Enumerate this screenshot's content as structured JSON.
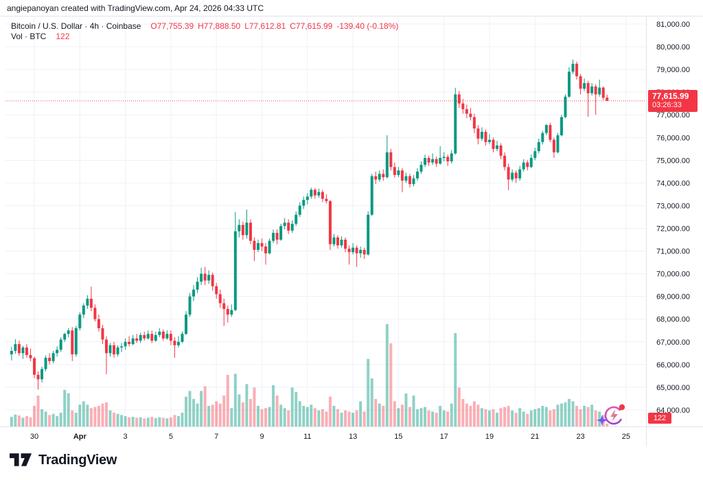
{
  "header": {
    "attribution": "angiepanoyan created with TradingView.com, Apr 24, 2026 04:33 UTC"
  },
  "legend": {
    "symbol": "Bitcoin / U.S. Dollar · 4h · Coinbase",
    "open": "O77,755.39",
    "high": "H77,888.50",
    "low": "L77,612.81",
    "close": "C77,615.99",
    "change": "-139.40 (-0.18%)",
    "volume_label": "Vol · BTC",
    "volume_value": "122"
  },
  "price_badge": {
    "price": "77,615.99",
    "countdown": "03:26:33"
  },
  "volume_badge": {
    "value": "122"
  },
  "footer": {
    "logo_text": "TradingView"
  },
  "colors": {
    "up": "#089981",
    "down": "#f23645",
    "vol_up": "rgba(8,153,129,0.45)",
    "vol_down": "rgba(242,54,69,0.40)",
    "grid": "#eef1f7",
    "axis_border": "#e0e3eb",
    "price_line": "#f23645",
    "badge": "#f23645",
    "text": "#131722"
  },
  "price_axis": {
    "labels": [
      {
        "value": 81000,
        "label": "81,000.00"
      },
      {
        "value": 80000,
        "label": "80,000.00"
      },
      {
        "value": 79000,
        "label": "79,000.00"
      },
      {
        "value": 78000,
        "label": "78,000.00"
      },
      {
        "value": 77000,
        "label": "77,000.00"
      },
      {
        "value": 76000,
        "label": "76,000.00"
      },
      {
        "value": 75000,
        "label": "75,000.00"
      },
      {
        "value": 74000,
        "label": "74,000.00"
      },
      {
        "value": 73000,
        "label": "73,000.00"
      },
      {
        "value": 72000,
        "label": "72,000.00"
      },
      {
        "value": 71000,
        "label": "71,000.00"
      },
      {
        "value": 70000,
        "label": "70,000.00"
      },
      {
        "value": 69000,
        "label": "69,000.00"
      },
      {
        "value": 68000,
        "label": "68,000.00"
      },
      {
        "value": 67000,
        "label": "67,000.00"
      },
      {
        "value": 66000,
        "label": "66,000.00"
      },
      {
        "value": 65000,
        "label": "65,000.00"
      },
      {
        "value": 64000,
        "label": "64,000.00"
      }
    ]
  },
  "time_axis": {
    "ticks": [
      {
        "label": "30",
        "day_offset": 0,
        "bold": false
      },
      {
        "label": "Apr",
        "day_offset": 2,
        "bold": true
      },
      {
        "label": "3",
        "day_offset": 4,
        "bold": false
      },
      {
        "label": "5",
        "day_offset": 6,
        "bold": false
      },
      {
        "label": "7",
        "day_offset": 8,
        "bold": false
      },
      {
        "label": "9",
        "day_offset": 10,
        "bold": false
      },
      {
        "label": "11",
        "day_offset": 12,
        "bold": false
      },
      {
        "label": "13",
        "day_offset": 14,
        "bold": false
      },
      {
        "label": "15",
        "day_offset": 16,
        "bold": false
      },
      {
        "label": "17",
        "day_offset": 18,
        "bold": false
      },
      {
        "label": "19",
        "day_offset": 20,
        "bold": false
      },
      {
        "label": "21",
        "day_offset": 22,
        "bold": false
      },
      {
        "label": "23",
        "day_offset": 24,
        "bold": false
      },
      {
        "label": "25",
        "day_offset": 26,
        "bold": false
      }
    ]
  },
  "chart_data": {
    "type": "candlestick",
    "title": "Bitcoin / U.S. Dollar",
    "exchange": "Coinbase",
    "interval": "4h",
    "bar_interval_hours": 4,
    "first_bar": "Mar 29 00:00 UTC",
    "last_bar": "Apr 24 04:00 UTC (in progress, 03:26:33 remaining)",
    "last_price": 77615.99,
    "change": -139.4,
    "change_pct": -0.18,
    "last_volume_btc": 122,
    "ylim": [
      63300,
      81400
    ],
    "grid": true,
    "legend_position": "top-left",
    "columns": [
      "open",
      "high",
      "low",
      "close",
      "volume_btc_est"
    ],
    "candles": [
      [
        66450,
        66780,
        66180,
        66600,
        420
      ],
      [
        66600,
        67120,
        66480,
        66900,
        520
      ],
      [
        66900,
        67050,
        66380,
        66500,
        480
      ],
      [
        66500,
        66820,
        66250,
        66750,
        380
      ],
      [
        66750,
        66900,
        66300,
        66420,
        450
      ],
      [
        66420,
        66700,
        66150,
        66280,
        400
      ],
      [
        66280,
        66350,
        65400,
        65550,
        900
      ],
      [
        65550,
        65700,
        64900,
        65350,
        1350
      ],
      [
        65350,
        65900,
        65200,
        65800,
        750
      ],
      [
        65800,
        66400,
        65700,
        66300,
        650
      ],
      [
        66300,
        66500,
        66000,
        66150,
        500
      ],
      [
        66150,
        66600,
        66050,
        66500,
        550
      ],
      [
        66500,
        66800,
        66350,
        66650,
        450
      ],
      [
        66650,
        67200,
        66550,
        67100,
        600
      ],
      [
        67100,
        67400,
        67000,
        67350,
        1600
      ],
      [
        67350,
        67600,
        67200,
        67500,
        1450
      ],
      [
        67500,
        67650,
        66150,
        66450,
        700
      ],
      [
        66450,
        67700,
        66350,
        67600,
        600
      ],
      [
        67600,
        68300,
        67500,
        68200,
        950
      ],
      [
        68200,
        68700,
        68050,
        68600,
        1100
      ],
      [
        68600,
        69050,
        68450,
        68900,
        950
      ],
      [
        68900,
        69430,
        68350,
        68500,
        800
      ],
      [
        68500,
        68650,
        67900,
        68000,
        850
      ],
      [
        68000,
        68200,
        67450,
        67600,
        900
      ],
      [
        67600,
        67750,
        66900,
        67100,
        1000
      ],
      [
        67100,
        67250,
        65570,
        66500,
        1050
      ],
      [
        66500,
        66950,
        66350,
        66850,
        700
      ],
      [
        66850,
        67000,
        66300,
        66450,
        600
      ],
      [
        66450,
        66850,
        66350,
        66750,
        550
      ],
      [
        66750,
        66950,
        66550,
        66800,
        500
      ],
      [
        66800,
        67150,
        66650,
        67000,
        450
      ],
      [
        67000,
        67250,
        66800,
        66900,
        400
      ],
      [
        66900,
        67300,
        66850,
        67150,
        420
      ],
      [
        67150,
        67350,
        66950,
        67050,
        380
      ],
      [
        67050,
        67400,
        66950,
        67300,
        400
      ],
      [
        67300,
        67450,
        67050,
        67150,
        350
      ],
      [
        67150,
        67500,
        67100,
        67350,
        380
      ],
      [
        67350,
        67500,
        66950,
        67050,
        420
      ],
      [
        67050,
        67450,
        67000,
        67300,
        360
      ],
      [
        67300,
        67600,
        67200,
        67450,
        400
      ],
      [
        67450,
        67550,
        67050,
        67150,
        380
      ],
      [
        67150,
        67500,
        67100,
        67350,
        350
      ],
      [
        67350,
        67500,
        66850,
        67050,
        400
      ],
      [
        67050,
        67200,
        66300,
        66850,
        500
      ],
      [
        66850,
        67250,
        66750,
        67000,
        450
      ],
      [
        67000,
        67450,
        66950,
        67350,
        600
      ],
      [
        67350,
        68350,
        67300,
        68200,
        1300
      ],
      [
        68200,
        69150,
        68100,
        69000,
        1550
      ],
      [
        69000,
        69500,
        68800,
        69300,
        1200
      ],
      [
        69300,
        69850,
        69150,
        69650,
        1000
      ],
      [
        69650,
        70260,
        69500,
        70000,
        1550
      ],
      [
        70000,
        70300,
        69500,
        69700,
        1750
      ],
      [
        69700,
        70150,
        69550,
        69950,
        900
      ],
      [
        69950,
        70050,
        69250,
        69450,
        950
      ],
      [
        69450,
        69600,
        68900,
        69100,
        1100
      ],
      [
        69100,
        69300,
        68500,
        68700,
        1000
      ],
      [
        68700,
        68900,
        67700,
        68450,
        1350
      ],
      [
        68450,
        68600,
        67850,
        68200,
        2250
      ],
      [
        68200,
        68650,
        68100,
        68400,
        800
      ],
      [
        68400,
        72710,
        68350,
        71870,
        2300
      ],
      [
        71870,
        72400,
        71600,
        72150,
        1400
      ],
      [
        72150,
        72300,
        71500,
        71700,
        1050
      ],
      [
        71700,
        72830,
        71550,
        72250,
        1850
      ],
      [
        72250,
        72400,
        71300,
        71450,
        1200
      ],
      [
        71450,
        71600,
        70560,
        71050,
        1700
      ],
      [
        71050,
        71500,
        70950,
        71350,
        900
      ],
      [
        71350,
        71550,
        71000,
        71200,
        750
      ],
      [
        71200,
        71350,
        70400,
        70900,
        800
      ],
      [
        70900,
        71550,
        70850,
        71450,
        850
      ],
      [
        71450,
        71950,
        71350,
        71800,
        1800
      ],
      [
        71800,
        71950,
        71300,
        71500,
        1350
      ],
      [
        71500,
        72200,
        71450,
        72100,
        950
      ],
      [
        72100,
        72450,
        71950,
        72250,
        800
      ],
      [
        72250,
        72400,
        71750,
        71900,
        700
      ],
      [
        71900,
        72350,
        71800,
        72200,
        1700
      ],
      [
        72200,
        72750,
        72100,
        72600,
        1500
      ],
      [
        72600,
        73150,
        72500,
        73000,
        1100
      ],
      [
        73000,
        73400,
        72850,
        73250,
        900
      ],
      [
        73250,
        73550,
        73050,
        73400,
        850
      ],
      [
        73400,
        73790,
        73300,
        73700,
        950
      ],
      [
        73700,
        73780,
        73300,
        73450,
        800
      ],
      [
        73450,
        73750,
        73350,
        73600,
        700
      ],
      [
        73600,
        73700,
        73150,
        73300,
        750
      ],
      [
        73300,
        73500,
        73100,
        73200,
        650
      ],
      [
        73200,
        73250,
        71050,
        71300,
        1300
      ],
      [
        71300,
        71750,
        71200,
        71600,
        900
      ],
      [
        71600,
        71700,
        71100,
        71250,
        750
      ],
      [
        71250,
        71650,
        71150,
        71500,
        600
      ],
      [
        71500,
        71600,
        70950,
        71100,
        700
      ],
      [
        71100,
        71250,
        70400,
        70950,
        650
      ],
      [
        70950,
        71350,
        70850,
        71150,
        600
      ],
      [
        71150,
        71250,
        70300,
        70900,
        700
      ],
      [
        70900,
        71200,
        70700,
        71050,
        1100
      ],
      [
        71050,
        71150,
        70650,
        70850,
        650
      ],
      [
        70850,
        72750,
        70800,
        72600,
        2950
      ],
      [
        72600,
        74400,
        72550,
        74300,
        2100
      ],
      [
        74300,
        74500,
        73950,
        74150,
        1200
      ],
      [
        74150,
        74550,
        74050,
        74400,
        1000
      ],
      [
        74400,
        74600,
        74100,
        74250,
        900
      ],
      [
        74250,
        76100,
        74200,
        75350,
        4470
      ],
      [
        75350,
        75500,
        74550,
        74700,
        3630
      ],
      [
        74700,
        74900,
        74230,
        74350,
        1100
      ],
      [
        74350,
        74700,
        74250,
        74550,
        800
      ],
      [
        74550,
        74650,
        73590,
        74100,
        950
      ],
      [
        74100,
        74450,
        74000,
        74300,
        1440
      ],
      [
        74300,
        74400,
        73800,
        73950,
        850
      ],
      [
        73950,
        74350,
        73850,
        74200,
        1350
      ],
      [
        74200,
        74650,
        74100,
        74500,
        750
      ],
      [
        74500,
        74950,
        74400,
        74800,
        800
      ],
      [
        74800,
        75250,
        74700,
        75100,
        850
      ],
      [
        75100,
        75200,
        74750,
        74900,
        700
      ],
      [
        74900,
        75300,
        74800,
        75050,
        650
      ],
      [
        75050,
        75150,
        74700,
        74850,
        600
      ],
      [
        74850,
        75620,
        74800,
        75100,
        900
      ],
      [
        75100,
        75350,
        74950,
        75150,
        700
      ],
      [
        75150,
        75250,
        74750,
        74950,
        650
      ],
      [
        74950,
        75450,
        74850,
        75300,
        1000
      ],
      [
        75300,
        78190,
        75250,
        77900,
        4080
      ],
      [
        77900,
        78050,
        77300,
        77500,
        1700
      ],
      [
        77500,
        77700,
        77050,
        77250,
        1200
      ],
      [
        77250,
        77450,
        76850,
        77050,
        1000
      ],
      [
        77050,
        77300,
        76750,
        76900,
        900
      ],
      [
        76900,
        77050,
        76200,
        76400,
        1100
      ],
      [
        76400,
        76550,
        75700,
        75950,
        950
      ],
      [
        75950,
        76450,
        75850,
        76250,
        800
      ],
      [
        76250,
        76350,
        75650,
        75800,
        750
      ],
      [
        75800,
        76150,
        75700,
        75900,
        700
      ],
      [
        75900,
        76000,
        75350,
        75500,
        750
      ],
      [
        75500,
        75850,
        75400,
        75650,
        600
      ],
      [
        75650,
        75750,
        75050,
        75200,
        800
      ],
      [
        75200,
        75350,
        74550,
        74700,
        850
      ],
      [
        74700,
        74850,
        73680,
        74150,
        900
      ],
      [
        74150,
        74600,
        74050,
        74450,
        700
      ],
      [
        74450,
        74550,
        74000,
        74200,
        600
      ],
      [
        74200,
        74750,
        74100,
        74600,
        800
      ],
      [
        74600,
        75050,
        74500,
        74900,
        650
      ],
      [
        74900,
        75000,
        74550,
        74700,
        550
      ],
      [
        74700,
        75250,
        74650,
        75100,
        700
      ],
      [
        75100,
        75550,
        75000,
        75400,
        750
      ],
      [
        75400,
        75950,
        75300,
        75800,
        800
      ],
      [
        75800,
        76300,
        75700,
        76200,
        900
      ],
      [
        76200,
        76600,
        76100,
        76550,
        850
      ],
      [
        76550,
        76650,
        75800,
        75900,
        700
      ],
      [
        75900,
        76000,
        75100,
        75350,
        750
      ],
      [
        75350,
        76200,
        75300,
        76100,
        950
      ],
      [
        76100,
        77000,
        76050,
        76900,
        1000
      ],
      [
        76900,
        77900,
        76850,
        77800,
        1050
      ],
      [
        77800,
        79100,
        77750,
        78900,
        1200
      ],
      [
        78900,
        79430,
        78800,
        79250,
        1100
      ],
      [
        79250,
        79350,
        78550,
        78700,
        900
      ],
      [
        78700,
        78800,
        77900,
        78150,
        750
      ],
      [
        78150,
        78600,
        78050,
        78400,
        900
      ],
      [
        78400,
        78500,
        76920,
        77950,
        850
      ],
      [
        77950,
        78400,
        77850,
        78250,
        950
      ],
      [
        78250,
        78350,
        77000,
        77900,
        700
      ],
      [
        77900,
        78550,
        77800,
        78200,
        650
      ],
      [
        78200,
        78250,
        77650,
        77755,
        500
      ],
      [
        77755.39,
        77888.5,
        77612.81,
        77615.99,
        122
      ]
    ]
  }
}
